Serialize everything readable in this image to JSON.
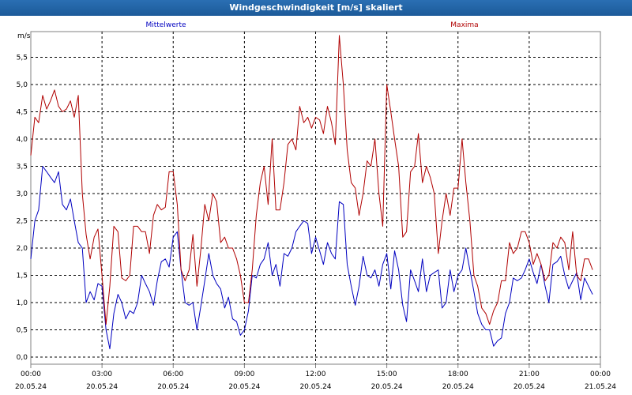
{
  "window": {
    "title": "Windgeschwindigkeit [m/s] skaliert"
  },
  "chart_data": {
    "type": "line",
    "ylabel": "m/s",
    "ylim": [
      0.0,
      6.0
    ],
    "y_ticks": [
      "0,0",
      "0,5",
      "1,0",
      "1,5",
      "2,0",
      "2,5",
      "3,0",
      "3,5",
      "4,0",
      "4,5",
      "5,0",
      "5,5"
    ],
    "y_tick_values": [
      0,
      0.5,
      1.0,
      1.5,
      2.0,
      2.5,
      3.0,
      3.5,
      4.0,
      4.5,
      5.0,
      5.5
    ],
    "x_ticks": [
      {
        "time": "00:00",
        "date": "20.05.24"
      },
      {
        "time": "03:00",
        "date": "20.05.24"
      },
      {
        "time": "06:00",
        "date": "20.05.24"
      },
      {
        "time": "09:00",
        "date": "20.05.24"
      },
      {
        "time": "12:00",
        "date": "20.05.24"
      },
      {
        "time": "15:00",
        "date": "20.05.24"
      },
      {
        "time": "18:00",
        "date": "20.05.24"
      },
      {
        "time": "21:00",
        "date": "20.05.24"
      },
      {
        "time": "00:00",
        "date": "21.05.24"
      }
    ],
    "x_range_hours": [
      0,
      24
    ],
    "grid": true,
    "series": [
      {
        "name": "Mittelwerte",
        "color": "#0000c0",
        "points": [
          [
            0.0,
            1.8
          ],
          [
            0.17,
            2.5
          ],
          [
            0.33,
            2.7
          ],
          [
            0.5,
            3.5
          ],
          [
            0.67,
            3.4
          ],
          [
            0.83,
            3.3
          ],
          [
            1.0,
            3.2
          ],
          [
            1.17,
            3.4
          ],
          [
            1.33,
            2.8
          ],
          [
            1.5,
            2.7
          ],
          [
            1.67,
            2.9
          ],
          [
            1.83,
            2.5
          ],
          [
            2.0,
            2.1
          ],
          [
            2.17,
            2.0
          ],
          [
            2.33,
            1.0
          ],
          [
            2.5,
            1.2
          ],
          [
            2.67,
            1.05
          ],
          [
            2.83,
            1.35
          ],
          [
            3.0,
            1.3
          ],
          [
            3.17,
            0.5
          ],
          [
            3.33,
            0.15
          ],
          [
            3.5,
            0.8
          ],
          [
            3.67,
            1.15
          ],
          [
            3.83,
            1.0
          ],
          [
            4.0,
            0.7
          ],
          [
            4.17,
            0.85
          ],
          [
            4.33,
            0.8
          ],
          [
            4.5,
            1.0
          ],
          [
            4.67,
            1.5
          ],
          [
            4.83,
            1.35
          ],
          [
            5.0,
            1.2
          ],
          [
            5.17,
            0.95
          ],
          [
            5.33,
            1.4
          ],
          [
            5.5,
            1.75
          ],
          [
            5.67,
            1.8
          ],
          [
            5.83,
            1.65
          ],
          [
            6.0,
            2.2
          ],
          [
            6.17,
            2.3
          ],
          [
            6.33,
            1.6
          ],
          [
            6.5,
            1.0
          ],
          [
            6.67,
            0.95
          ],
          [
            6.83,
            1.0
          ],
          [
            7.0,
            0.5
          ],
          [
            7.17,
            0.95
          ],
          [
            7.33,
            1.4
          ],
          [
            7.5,
            1.9
          ],
          [
            7.67,
            1.5
          ],
          [
            7.83,
            1.35
          ],
          [
            8.0,
            1.25
          ],
          [
            8.17,
            0.9
          ],
          [
            8.33,
            1.1
          ],
          [
            8.5,
            0.7
          ],
          [
            8.67,
            0.65
          ],
          [
            8.83,
            0.4
          ],
          [
            9.0,
            0.5
          ],
          [
            9.17,
            0.85
          ],
          [
            9.33,
            1.5
          ],
          [
            9.5,
            1.45
          ],
          [
            9.67,
            1.7
          ],
          [
            9.83,
            1.8
          ],
          [
            10.0,
            2.1
          ],
          [
            10.17,
            1.5
          ],
          [
            10.33,
            1.7
          ],
          [
            10.5,
            1.3
          ],
          [
            10.67,
            1.9
          ],
          [
            10.83,
            1.85
          ],
          [
            11.0,
            2.0
          ],
          [
            11.17,
            2.3
          ],
          [
            11.33,
            2.4
          ],
          [
            11.5,
            2.5
          ],
          [
            11.67,
            2.45
          ],
          [
            11.83,
            1.9
          ],
          [
            12.0,
            2.2
          ],
          [
            12.17,
            1.95
          ],
          [
            12.33,
            1.7
          ],
          [
            12.5,
            2.1
          ],
          [
            12.67,
            1.9
          ],
          [
            12.83,
            1.8
          ],
          [
            13.0,
            2.85
          ],
          [
            13.17,
            2.8
          ],
          [
            13.33,
            1.7
          ],
          [
            13.5,
            1.3
          ],
          [
            13.67,
            0.95
          ],
          [
            13.83,
            1.3
          ],
          [
            14.0,
            1.85
          ],
          [
            14.17,
            1.5
          ],
          [
            14.33,
            1.45
          ],
          [
            14.5,
            1.6
          ],
          [
            14.67,
            1.3
          ],
          [
            14.83,
            1.7
          ],
          [
            15.0,
            1.9
          ],
          [
            15.17,
            1.25
          ],
          [
            15.33,
            1.95
          ],
          [
            15.5,
            1.6
          ],
          [
            15.67,
            0.95
          ],
          [
            15.83,
            0.65
          ],
          [
            16.0,
            1.6
          ],
          [
            16.17,
            1.4
          ],
          [
            16.33,
            1.2
          ],
          [
            16.5,
            1.8
          ],
          [
            16.67,
            1.2
          ],
          [
            16.83,
            1.5
          ],
          [
            17.0,
            1.55
          ],
          [
            17.17,
            1.6
          ],
          [
            17.33,
            0.9
          ],
          [
            17.5,
            1.0
          ],
          [
            17.67,
            1.6
          ],
          [
            17.83,
            1.2
          ],
          [
            18.0,
            1.5
          ],
          [
            18.17,
            1.6
          ],
          [
            18.33,
            2.0
          ],
          [
            18.5,
            1.6
          ],
          [
            18.67,
            1.2
          ],
          [
            18.83,
            0.8
          ],
          [
            19.0,
            0.6
          ],
          [
            19.17,
            0.5
          ],
          [
            19.33,
            0.5
          ],
          [
            19.5,
            0.2
          ],
          [
            19.67,
            0.3
          ],
          [
            19.83,
            0.35
          ],
          [
            20.0,
            0.8
          ],
          [
            20.17,
            1.0
          ],
          [
            20.33,
            1.45
          ],
          [
            20.5,
            1.4
          ],
          [
            20.67,
            1.45
          ],
          [
            20.83,
            1.6
          ],
          [
            21.0,
            1.8
          ],
          [
            21.17,
            1.55
          ],
          [
            21.33,
            1.35
          ],
          [
            21.5,
            1.7
          ],
          [
            21.67,
            1.3
          ],
          [
            21.83,
            1.0
          ],
          [
            22.0,
            1.7
          ],
          [
            22.17,
            1.75
          ],
          [
            22.33,
            1.85
          ],
          [
            22.5,
            1.5
          ],
          [
            22.67,
            1.25
          ],
          [
            22.83,
            1.4
          ],
          [
            23.0,
            1.55
          ],
          [
            23.17,
            1.05
          ],
          [
            23.33,
            1.45
          ],
          [
            23.5,
            1.3
          ],
          [
            23.67,
            1.15
          ]
        ]
      },
      {
        "name": "Maxima",
        "color": "#b00000",
        "points": [
          [
            0.0,
            3.7
          ],
          [
            0.17,
            4.4
          ],
          [
            0.33,
            4.3
          ],
          [
            0.5,
            4.8
          ],
          [
            0.67,
            4.55
          ],
          [
            0.83,
            4.7
          ],
          [
            1.0,
            4.9
          ],
          [
            1.17,
            4.6
          ],
          [
            1.33,
            4.5
          ],
          [
            1.5,
            4.55
          ],
          [
            1.67,
            4.7
          ],
          [
            1.83,
            4.4
          ],
          [
            2.0,
            4.8
          ],
          [
            2.17,
            3.0
          ],
          [
            2.33,
            2.25
          ],
          [
            2.5,
            1.8
          ],
          [
            2.67,
            2.2
          ],
          [
            2.83,
            2.35
          ],
          [
            3.0,
            1.5
          ],
          [
            3.17,
            0.6
          ],
          [
            3.33,
            1.3
          ],
          [
            3.5,
            2.4
          ],
          [
            3.67,
            2.3
          ],
          [
            3.83,
            1.45
          ],
          [
            4.0,
            1.4
          ],
          [
            4.17,
            1.5
          ],
          [
            4.33,
            2.4
          ],
          [
            4.5,
            2.4
          ],
          [
            4.67,
            2.3
          ],
          [
            4.83,
            2.3
          ],
          [
            5.0,
            1.9
          ],
          [
            5.17,
            2.6
          ],
          [
            5.33,
            2.8
          ],
          [
            5.5,
            2.7
          ],
          [
            5.67,
            2.75
          ],
          [
            5.83,
            3.4
          ],
          [
            6.0,
            3.4
          ],
          [
            6.17,
            2.8
          ],
          [
            6.33,
            1.6
          ],
          [
            6.5,
            1.4
          ],
          [
            6.67,
            1.6
          ],
          [
            6.83,
            2.25
          ],
          [
            7.0,
            1.3
          ],
          [
            7.17,
            2.0
          ],
          [
            7.33,
            2.8
          ],
          [
            7.5,
            2.5
          ],
          [
            7.67,
            3.0
          ],
          [
            7.83,
            2.85
          ],
          [
            8.0,
            2.1
          ],
          [
            8.17,
            2.2
          ],
          [
            8.33,
            2.0
          ],
          [
            8.5,
            2.0
          ],
          [
            8.67,
            1.8
          ],
          [
            8.83,
            1.5
          ],
          [
            9.0,
            1.0
          ],
          [
            9.17,
            1.0
          ],
          [
            9.33,
            1.6
          ],
          [
            9.5,
            2.6
          ],
          [
            9.67,
            3.2
          ],
          [
            9.83,
            3.5
          ],
          [
            10.0,
            2.8
          ],
          [
            10.17,
            4.0
          ],
          [
            10.33,
            2.7
          ],
          [
            10.5,
            2.7
          ],
          [
            10.67,
            3.2
          ],
          [
            10.83,
            3.9
          ],
          [
            11.0,
            4.0
          ],
          [
            11.17,
            3.8
          ],
          [
            11.33,
            4.6
          ],
          [
            11.5,
            4.3
          ],
          [
            11.67,
            4.4
          ],
          [
            11.83,
            4.2
          ],
          [
            12.0,
            4.4
          ],
          [
            12.17,
            4.35
          ],
          [
            12.33,
            4.1
          ],
          [
            12.5,
            4.6
          ],
          [
            12.67,
            4.3
          ],
          [
            12.83,
            3.9
          ],
          [
            13.0,
            5.9
          ],
          [
            13.17,
            5.0
          ],
          [
            13.33,
            3.8
          ],
          [
            13.5,
            3.2
          ],
          [
            13.67,
            3.1
          ],
          [
            13.83,
            2.6
          ],
          [
            14.0,
            3.0
          ],
          [
            14.17,
            3.6
          ],
          [
            14.33,
            3.5
          ],
          [
            14.5,
            4.0
          ],
          [
            14.67,
            3.0
          ],
          [
            14.83,
            2.4
          ],
          [
            15.0,
            5.0
          ],
          [
            15.17,
            4.5
          ],
          [
            15.33,
            4.0
          ],
          [
            15.5,
            3.5
          ],
          [
            15.67,
            2.2
          ],
          [
            15.83,
            2.3
          ],
          [
            16.0,
            3.4
          ],
          [
            16.17,
            3.5
          ],
          [
            16.33,
            4.1
          ],
          [
            16.5,
            3.2
          ],
          [
            16.67,
            3.5
          ],
          [
            16.83,
            3.3
          ],
          [
            17.0,
            3.0
          ],
          [
            17.17,
            1.9
          ],
          [
            17.33,
            2.5
          ],
          [
            17.5,
            3.0
          ],
          [
            17.67,
            2.6
          ],
          [
            17.83,
            3.1
          ],
          [
            18.0,
            3.1
          ],
          [
            18.17,
            4.0
          ],
          [
            18.33,
            3.2
          ],
          [
            18.5,
            2.5
          ],
          [
            18.67,
            1.5
          ],
          [
            18.83,
            1.3
          ],
          [
            19.0,
            0.9
          ],
          [
            19.17,
            0.8
          ],
          [
            19.33,
            0.6
          ],
          [
            19.5,
            0.85
          ],
          [
            19.67,
            1.0
          ],
          [
            19.83,
            1.4
          ],
          [
            20.0,
            1.4
          ],
          [
            20.17,
            2.1
          ],
          [
            20.33,
            1.9
          ],
          [
            20.5,
            2.0
          ],
          [
            20.67,
            2.3
          ],
          [
            20.83,
            2.3
          ],
          [
            21.0,
            2.1
          ],
          [
            21.17,
            1.7
          ],
          [
            21.33,
            1.9
          ],
          [
            21.5,
            1.7
          ],
          [
            21.67,
            1.4
          ],
          [
            21.83,
            1.5
          ],
          [
            22.0,
            2.1
          ],
          [
            22.17,
            2.0
          ],
          [
            22.33,
            2.2
          ],
          [
            22.5,
            2.1
          ],
          [
            22.67,
            1.6
          ],
          [
            22.83,
            2.3
          ],
          [
            23.0,
            1.5
          ],
          [
            23.17,
            1.4
          ],
          [
            23.33,
            1.8
          ],
          [
            23.5,
            1.8
          ],
          [
            23.67,
            1.6
          ]
        ]
      }
    ]
  }
}
